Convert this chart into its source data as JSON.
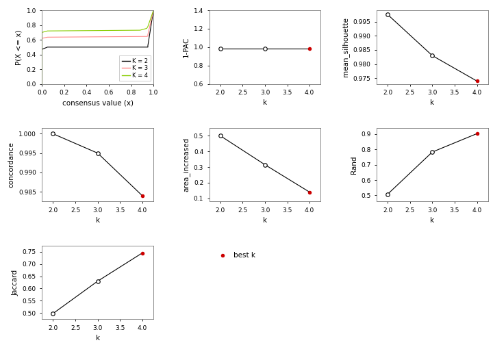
{
  "ecdf": {
    "k2_x": [
      0.0,
      0.001,
      0.001,
      0.05,
      0.94,
      0.95,
      0.95,
      1.0
    ],
    "k2_y": [
      0.0,
      0.0,
      0.47,
      0.5,
      0.5,
      0.5,
      0.52,
      1.0
    ],
    "k3_x": [
      0.0,
      0.001,
      0.001,
      0.05,
      0.94,
      0.95,
      0.95,
      1.0
    ],
    "k3_y": [
      0.0,
      0.0,
      0.62,
      0.635,
      0.645,
      0.65,
      0.67,
      1.0
    ],
    "k4_x": [
      0.0,
      0.001,
      0.001,
      0.05,
      0.88,
      0.94,
      0.95,
      1.0
    ],
    "k4_y": [
      0.0,
      0.0,
      0.7,
      0.72,
      0.73,
      0.755,
      0.78,
      1.0
    ],
    "xlabel": "consensus value (x)",
    "ylabel": "P(X <= x)",
    "xlim": [
      0.0,
      1.0
    ],
    "ylim": [
      0.0,
      1.0
    ],
    "colors": [
      "#000000",
      "#ff8888",
      "#88cc00"
    ],
    "legend_labels": [
      "K = 2",
      "K = 3",
      "K = 4"
    ]
  },
  "pac": {
    "k": [
      2,
      3,
      4
    ],
    "values": [
      0.985,
      0.985,
      0.985
    ],
    "best_k": 4,
    "xlabel": "k",
    "ylabel": "1-PAC",
    "ylim": [
      0.6,
      1.4
    ],
    "yticks": [
      0.6,
      0.8,
      1.0,
      1.2,
      1.4
    ]
  },
  "silhouette": {
    "k": [
      2,
      3,
      4
    ],
    "values": [
      0.9975,
      0.983,
      0.974
    ],
    "best_k": 4,
    "xlabel": "k",
    "ylabel": "mean_silhouette",
    "ylim": [
      0.973,
      0.999
    ],
    "yticks": [
      0.975,
      0.98,
      0.985,
      0.99,
      0.995
    ]
  },
  "concordance": {
    "k": [
      2,
      3,
      4
    ],
    "values": [
      1.0,
      0.995,
      0.984
    ],
    "best_k": 4,
    "xlabel": "k",
    "ylabel": "concordance",
    "ylim": [
      0.9825,
      1.0015
    ],
    "yticks": [
      0.985,
      0.99,
      0.995,
      1.0
    ]
  },
  "area": {
    "k": [
      2,
      3,
      4
    ],
    "values": [
      0.5,
      0.315,
      0.14
    ],
    "best_k": 4,
    "xlabel": "k",
    "ylabel": "area_increased",
    "ylim": [
      0.08,
      0.55
    ],
    "yticks": [
      0.1,
      0.2,
      0.3,
      0.4,
      0.5
    ]
  },
  "rand": {
    "k": [
      2,
      3,
      4
    ],
    "values": [
      0.508,
      0.783,
      0.903
    ],
    "best_k": 4,
    "xlabel": "k",
    "ylabel": "Rand",
    "ylim": [
      0.46,
      0.94
    ],
    "yticks": [
      0.5,
      0.6,
      0.7,
      0.8,
      0.9
    ]
  },
  "jaccard": {
    "k": [
      2,
      3,
      4
    ],
    "values": [
      0.498,
      0.63,
      0.745
    ],
    "best_k": 4,
    "xlabel": "k",
    "ylabel": "Jaccard",
    "ylim": [
      0.475,
      0.775
    ],
    "yticks": [
      0.5,
      0.55,
      0.6,
      0.65,
      0.7,
      0.75
    ]
  },
  "best_k_color": "#cc0000",
  "open_color": "#000000",
  "line_color": "#000000",
  "bg_color": "#ffffff",
  "font_size": 7.5
}
